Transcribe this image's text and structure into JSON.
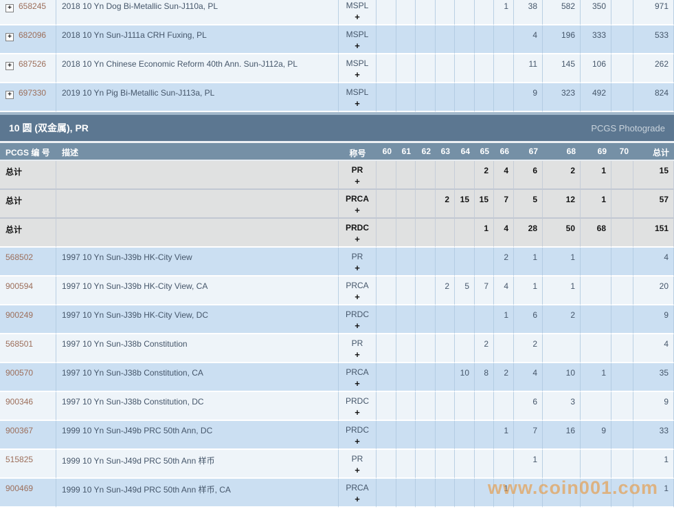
{
  "icons": {
    "expand_plus": "+"
  },
  "watermark": "www.coin001.com",
  "columns": [
    "PCGS 编 号",
    "描述",
    "称号",
    "60",
    "61",
    "62",
    "63",
    "64",
    "65",
    "66",
    "67",
    "68",
    "69",
    "70",
    "总计"
  ],
  "section": {
    "title": "10 圆 (双金属), PR",
    "right_label": "PCGS Photograde"
  },
  "top_section": {
    "rows": [
      {
        "pcgs_no": "658245",
        "desc": "2018 10 Yn Dog Bi-Metallic Sun-J110a, PL",
        "designation": "MSPL",
        "plus": "+",
        "grades": [
          "",
          "",
          "",
          "",
          "",
          "",
          "1",
          "38",
          "582",
          "350",
          ""
        ],
        "total": "971"
      },
      {
        "pcgs_no": "682096",
        "desc": "2018 10 Yn Sun-J111a CRH Fuxing, PL",
        "designation": "MSPL",
        "plus": "+",
        "grades": [
          "",
          "",
          "",
          "",
          "",
          "",
          "",
          "4",
          "196",
          "333",
          ""
        ],
        "total": "533"
      },
      {
        "pcgs_no": "687526",
        "desc": "2018 10 Yn Chinese Economic Reform 40th Ann. Sun-J112a, PL",
        "designation": "MSPL",
        "plus": "+",
        "grades": [
          "",
          "",
          "",
          "",
          "",
          "",
          "",
          "11",
          "145",
          "106",
          ""
        ],
        "total": "262"
      },
      {
        "pcgs_no": "697330",
        "desc": "2019 10 Yn Pig Bi-Metallic Sun-J113a, PL",
        "designation": "MSPL",
        "plus": "+",
        "grades": [
          "",
          "",
          "",
          "",
          "",
          "",
          "",
          "9",
          "323",
          "492",
          ""
        ],
        "total": "824"
      }
    ]
  },
  "summary_rows": [
    {
      "label": "总计",
      "designation": "PR",
      "plus": "+",
      "grades": [
        "",
        "",
        "",
        "",
        "",
        "2",
        "4",
        "6",
        "2",
        "1",
        ""
      ],
      "total": "15"
    },
    {
      "label": "总计",
      "designation": "PRCA",
      "plus": "+",
      "grades": [
        "",
        "",
        "",
        "2",
        "15",
        "15",
        "7",
        "5",
        "12",
        "1",
        ""
      ],
      "total": "57"
    },
    {
      "label": "总计",
      "designation": "PRDC",
      "plus": "+",
      "grades": [
        "",
        "",
        "",
        "",
        "",
        "1",
        "4",
        "28",
        "50",
        "68",
        ""
      ],
      "total": "151"
    }
  ],
  "data_rows": [
    {
      "pcgs_no": "568502",
      "desc": "1997 10 Yn Sun-J39b HK-City View",
      "designation": "PR",
      "plus": "+",
      "grades": [
        "",
        "",
        "",
        "",
        "",
        "",
        "2",
        "1",
        "1",
        "",
        ""
      ],
      "total": "4"
    },
    {
      "pcgs_no": "900594",
      "desc": "1997 10 Yn Sun-J39b HK-City View, CA",
      "designation": "PRCA",
      "plus": "+",
      "grades": [
        "",
        "",
        "",
        "2",
        "5",
        "7",
        "4",
        "1",
        "1",
        "",
        ""
      ],
      "total": "20"
    },
    {
      "pcgs_no": "900249",
      "desc": "1997 10 Yn Sun-J39b HK-City View, DC",
      "designation": "PRDC",
      "plus": "+",
      "grades": [
        "",
        "",
        "",
        "",
        "",
        "",
        "1",
        "6",
        "2",
        "",
        ""
      ],
      "total": "9"
    },
    {
      "pcgs_no": "568501",
      "desc": "1997 10 Yn Sun-J38b Constitution",
      "designation": "PR",
      "plus": "+",
      "grades": [
        "",
        "",
        "",
        "",
        "",
        "2",
        "",
        "2",
        "",
        "",
        ""
      ],
      "total": "4"
    },
    {
      "pcgs_no": "900570",
      "desc": "1997 10 Yn Sun-J38b Constitution, CA",
      "designation": "PRCA",
      "plus": "+",
      "grades": [
        "",
        "",
        "",
        "",
        "10",
        "8",
        "2",
        "4",
        "10",
        "1",
        ""
      ],
      "total": "35"
    },
    {
      "pcgs_no": "900346",
      "desc": "1997 10 Yn Sun-J38b Constitution, DC",
      "designation": "PRDC",
      "plus": "+",
      "grades": [
        "",
        "",
        "",
        "",
        "",
        "",
        "",
        "6",
        "3",
        "",
        ""
      ],
      "total": "9"
    },
    {
      "pcgs_no": "900367",
      "desc": "1999 10 Yn Sun-J49b PRC 50th Ann, DC",
      "designation": "PRDC",
      "plus": "+",
      "grades": [
        "",
        "",
        "",
        "",
        "",
        "",
        "1",
        "7",
        "16",
        "9",
        ""
      ],
      "total": "33"
    },
    {
      "pcgs_no": "515825",
      "desc": "1999 10 Yn Sun-J49d PRC 50th Ann 样币",
      "designation": "PR",
      "plus": "+",
      "grades": [
        "",
        "",
        "",
        "",
        "",
        "",
        "",
        "1",
        "",
        "",
        ""
      ],
      "total": "1"
    },
    {
      "pcgs_no": "900469",
      "desc": "1999 10 Yn Sun-J49d PRC 50th Ann 样币, CA",
      "designation": "PRCA",
      "plus": "+",
      "grades": [
        "",
        "",
        "",
        "",
        "",
        "",
        "1",
        "",
        "",
        "",
        ""
      ],
      "total": "1"
    }
  ],
  "colors": {
    "section_bar": "#5c7791",
    "column_header": "#7590a6",
    "row_blue": "#cbdff2",
    "row_light": "#eef4f9",
    "row_gray": "#e0e1e1",
    "link": "#9c6e5a",
    "watermark": "#e8963c"
  }
}
